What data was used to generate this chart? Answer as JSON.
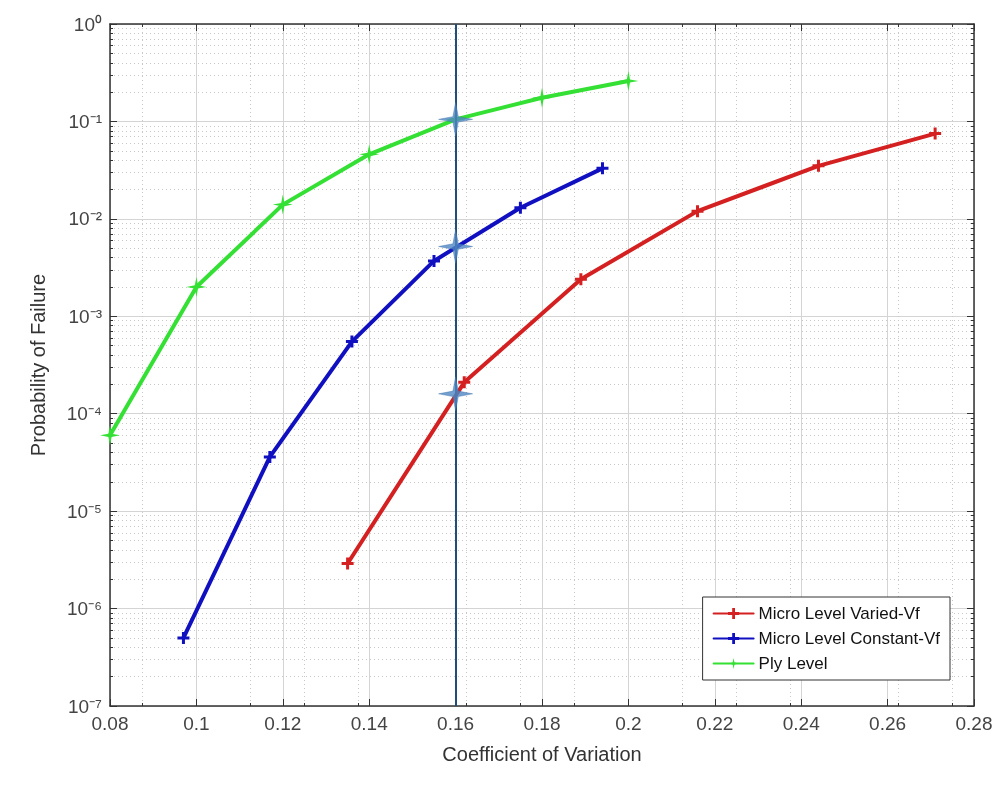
{
  "chart_data": {
    "type": "line",
    "xlabel": "Coefficient of Variation",
    "ylabel": "Probability of Failure",
    "xlim": [
      0.08,
      0.28
    ],
    "xticks": [
      0.08,
      0.1,
      0.12,
      0.14,
      0.16,
      0.18,
      0.2,
      0.22,
      0.24,
      0.26,
      0.28
    ],
    "ylim": [
      1e-07,
      1
    ],
    "log": "y",
    "yticks": [
      {
        "value": 1e-07,
        "label": "10⁻⁷"
      },
      {
        "value": 1e-06,
        "label": "10⁻⁶"
      },
      {
        "value": 1e-05,
        "label": "10⁻⁵"
      },
      {
        "value": 0.0001,
        "label": "10⁻⁴"
      },
      {
        "value": 0.001,
        "label": "10⁻³"
      },
      {
        "value": 0.01,
        "label": "10⁻²"
      },
      {
        "value": 0.1,
        "label": "10⁻¹"
      },
      {
        "value": 1,
        "label": "10⁰"
      }
    ],
    "grid": true,
    "legend": "bottom right",
    "series": [
      {
        "name": "Micro Level Varied-Vf",
        "color": "#d42020",
        "marker": "cross",
        "x": [
          0.135,
          0.162,
          0.189,
          0.216,
          0.244,
          0.271
        ],
        "values": [
          2.9e-06,
          0.00021,
          0.0024,
          0.012,
          0.035,
          0.075
        ]
      },
      {
        "name": "Micro Level Constant-Vf",
        "color": "#1010c0",
        "marker": "cross",
        "x": [
          0.097,
          0.117,
          0.136,
          0.155,
          0.175,
          0.194
        ],
        "values": [
          5e-07,
          3.6e-05,
          0.00055,
          0.0037,
          0.013,
          0.033
        ]
      },
      {
        "name": "Ply Level",
        "color": "#33e033",
        "marker": "star",
        "x": [
          0.08,
          0.1,
          0.12,
          0.14,
          0.16,
          0.18,
          0.2
        ],
        "values": [
          6e-05,
          0.002,
          0.014,
          0.046,
          0.105,
          0.175,
          0.26
        ]
      },
      {
        "type": "scatter",
        "color": "#4f87c4",
        "marker": "star",
        "x": [
          0.16,
          0.16,
          0.16
        ],
        "values": [
          0.105,
          0.0052,
          0.00016
        ]
      }
    ],
    "ref_lines": [
      {
        "axis": "x",
        "value": 0.16,
        "color": "#1f4e79"
      }
    ]
  }
}
